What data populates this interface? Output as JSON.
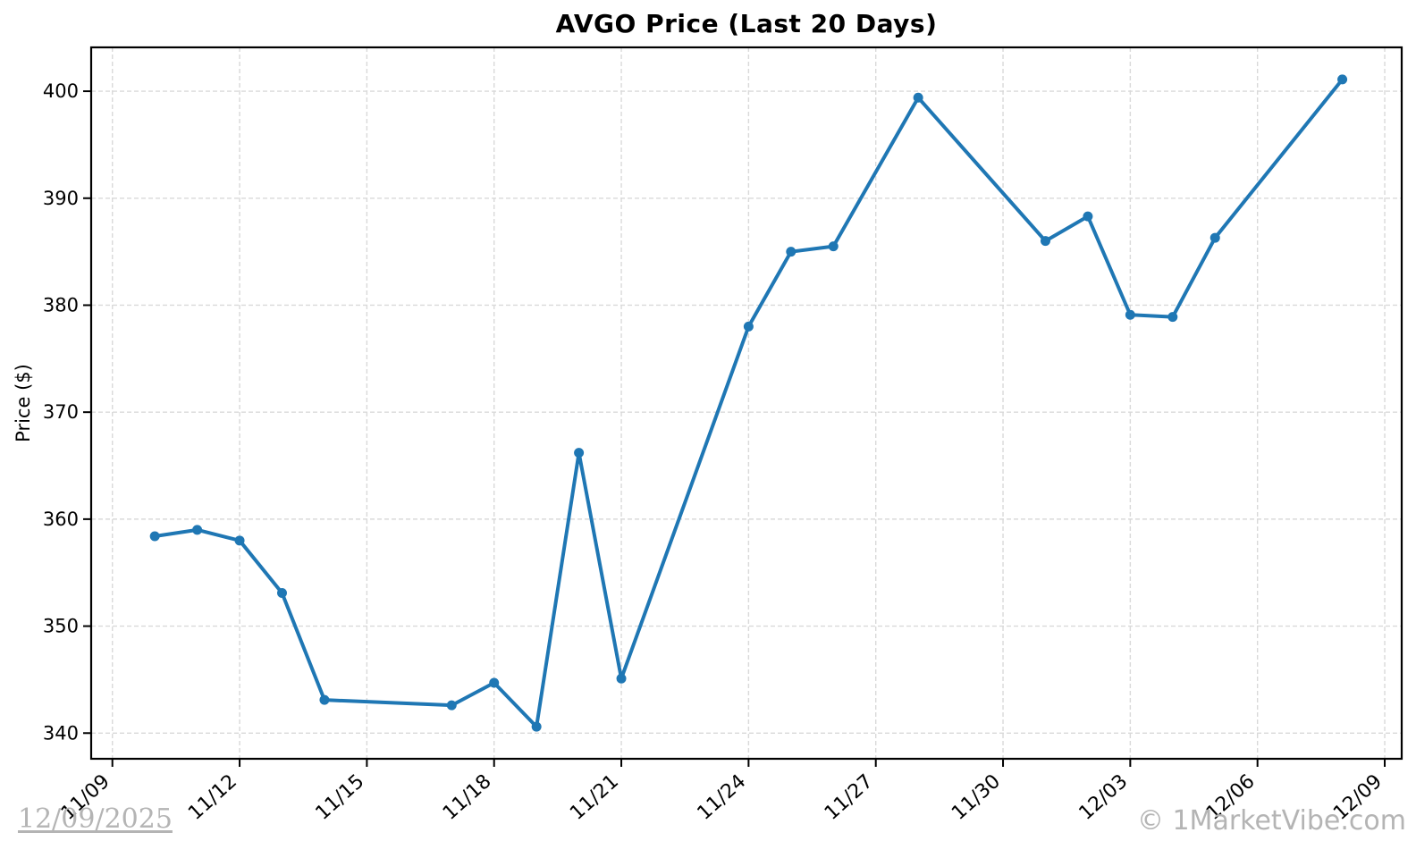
{
  "chart_data": {
    "type": "line",
    "title": "AVGO Price (Last 20 Days)",
    "xlabel": "",
    "ylabel": "Price ($)",
    "grid": true,
    "legend": "none",
    "line_color": "#1f77b4",
    "grid_color": "#d9d9d9",
    "xlim_days": [
      -0.5,
      30.4
    ],
    "ylim": [
      337.6,
      404.1
    ],
    "y_ticks": [
      340,
      350,
      360,
      370,
      380,
      390,
      400
    ],
    "x_ticks": [
      {
        "day": 0,
        "label": "11/09"
      },
      {
        "day": 3,
        "label": "11/12"
      },
      {
        "day": 6,
        "label": "11/15"
      },
      {
        "day": 9,
        "label": "11/18"
      },
      {
        "day": 12,
        "label": "11/21"
      },
      {
        "day": 15,
        "label": "11/24"
      },
      {
        "day": 18,
        "label": "11/27"
      },
      {
        "day": 21,
        "label": "11/30"
      },
      {
        "day": 24,
        "label": "12/03"
      },
      {
        "day": 27,
        "label": "12/06"
      },
      {
        "day": 30,
        "label": "12/09"
      }
    ],
    "series": [
      {
        "name": "AVGO",
        "color": "#1f77b4",
        "dates": [
          "11/10",
          "11/11",
          "11/12",
          "11/13",
          "11/14",
          "11/17",
          "11/18",
          "11/19",
          "11/20",
          "11/21",
          "11/24",
          "11/25",
          "11/26",
          "11/28",
          "12/01",
          "12/02",
          "12/03",
          "12/04",
          "12/05",
          "12/08"
        ],
        "day_offsets": [
          1,
          2,
          3,
          4,
          5,
          8,
          9,
          10,
          11,
          12,
          15,
          16,
          17,
          19,
          22,
          23,
          24,
          25,
          26,
          29
        ],
        "values": [
          358.4,
          359.0,
          358.0,
          353.1,
          343.1,
          342.6,
          344.7,
          340.6,
          366.2,
          345.1,
          378.0,
          385.0,
          385.5,
          399.4,
          386.0,
          388.3,
          379.1,
          378.9,
          386.3,
          401.1
        ]
      }
    ]
  },
  "watermarks": {
    "bottom_left": "12/09/2025",
    "bottom_right": "© 1MarketVibe.com"
  }
}
